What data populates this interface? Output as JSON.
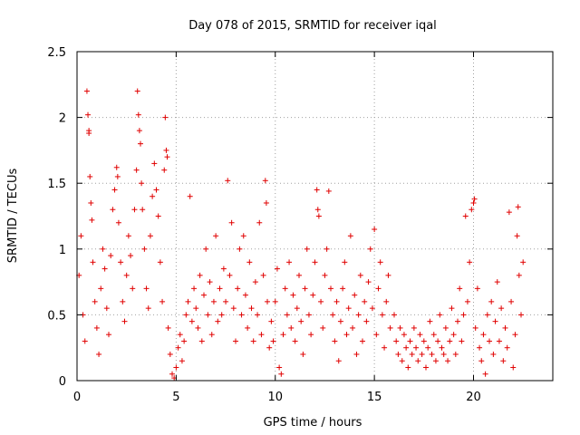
{
  "chart_data": {
    "type": "scatter",
    "title": "Day 078 of 2015, SRMTID for receiver iqal",
    "xlabel": "GPS time / hours",
    "ylabel": "SRMTID / TECUs",
    "xlim": [
      0,
      24
    ],
    "ylim": [
      0,
      2.5
    ],
    "grid": true,
    "marker": "plus",
    "color": "#e00000",
    "xticks": [
      0,
      5,
      10,
      15,
      20
    ],
    "xtick_labels": [
      "0",
      "5",
      "10",
      "15",
      "20"
    ],
    "yticks": [
      0,
      0.5,
      1,
      1.5,
      2,
      2.5
    ],
    "ytick_labels": [
      "0",
      "0.5",
      "1",
      "1.5",
      "2",
      "2.5"
    ],
    "series": [
      {
        "name": "iqal",
        "points": [
          [
            0.1,
            0.8
          ],
          [
            0.2,
            1.1
          ],
          [
            0.3,
            0.5
          ],
          [
            0.4,
            0.3
          ],
          [
            0.5,
            2.2
          ],
          [
            0.55,
            2.02
          ],
          [
            0.6,
            1.88
          ],
          [
            0.6,
            1.9
          ],
          [
            0.65,
            1.55
          ],
          [
            0.7,
            1.35
          ],
          [
            0.75,
            1.22
          ],
          [
            0.8,
            0.9
          ],
          [
            0.9,
            0.6
          ],
          [
            1.0,
            0.4
          ],
          [
            1.1,
            0.2
          ],
          [
            1.2,
            0.7
          ],
          [
            1.3,
            1.0
          ],
          [
            1.4,
            0.85
          ],
          [
            1.5,
            0.55
          ],
          [
            1.6,
            0.35
          ],
          [
            1.7,
            0.95
          ],
          [
            1.8,
            1.3
          ],
          [
            1.9,
            1.45
          ],
          [
            2.0,
            1.62
          ],
          [
            2.05,
            1.55
          ],
          [
            2.1,
            1.2
          ],
          [
            2.2,
            0.9
          ],
          [
            2.3,
            0.6
          ],
          [
            2.4,
            0.45
          ],
          [
            2.5,
            0.8
          ],
          [
            2.6,
            1.1
          ],
          [
            2.7,
            0.95
          ],
          [
            2.8,
            0.7
          ],
          [
            2.9,
            1.3
          ],
          [
            3.0,
            1.6
          ],
          [
            3.05,
            2.2
          ],
          [
            3.1,
            2.02
          ],
          [
            3.15,
            1.9
          ],
          [
            3.2,
            1.8
          ],
          [
            3.25,
            1.5
          ],
          [
            3.3,
            1.3
          ],
          [
            3.4,
            1.0
          ],
          [
            3.5,
            0.7
          ],
          [
            3.6,
            0.55
          ],
          [
            3.7,
            1.1
          ],
          [
            3.8,
            1.4
          ],
          [
            3.9,
            1.65
          ],
          [
            4.0,
            1.45
          ],
          [
            4.1,
            1.25
          ],
          [
            4.2,
            0.9
          ],
          [
            4.3,
            0.6
          ],
          [
            4.4,
            1.6
          ],
          [
            4.45,
            2.0
          ],
          [
            4.5,
            1.75
          ],
          [
            4.55,
            1.7
          ],
          [
            4.6,
            0.4
          ],
          [
            4.7,
            0.2
          ],
          [
            4.8,
            0.05
          ],
          [
            4.9,
            0.02
          ],
          [
            5.0,
            0.1
          ],
          [
            5.1,
            0.25
          ],
          [
            5.2,
            0.35
          ],
          [
            5.3,
            0.15
          ],
          [
            5.4,
            0.3
          ],
          [
            5.5,
            0.5
          ],
          [
            5.6,
            0.6
          ],
          [
            5.7,
            1.4
          ],
          [
            5.8,
            0.45
          ],
          [
            5.9,
            0.7
          ],
          [
            6.0,
            0.55
          ],
          [
            6.1,
            0.4
          ],
          [
            6.2,
            0.8
          ],
          [
            6.3,
            0.3
          ],
          [
            6.4,
            0.65
          ],
          [
            6.5,
            1.0
          ],
          [
            6.6,
            0.5
          ],
          [
            6.7,
            0.75
          ],
          [
            6.8,
            0.35
          ],
          [
            6.9,
            0.6
          ],
          [
            7.0,
            1.1
          ],
          [
            7.1,
            0.45
          ],
          [
            7.2,
            0.7
          ],
          [
            7.3,
            0.5
          ],
          [
            7.4,
            0.85
          ],
          [
            7.5,
            0.6
          ],
          [
            7.6,
            1.52
          ],
          [
            7.7,
            0.8
          ],
          [
            7.8,
            1.2
          ],
          [
            7.9,
            0.55
          ],
          [
            8.0,
            0.3
          ],
          [
            8.1,
            0.7
          ],
          [
            8.2,
            1.0
          ],
          [
            8.3,
            0.5
          ],
          [
            8.4,
            1.1
          ],
          [
            8.5,
            0.65
          ],
          [
            8.6,
            0.4
          ],
          [
            8.7,
            0.9
          ],
          [
            8.8,
            0.55
          ],
          [
            8.9,
            0.3
          ],
          [
            9.0,
            0.75
          ],
          [
            9.1,
            0.5
          ],
          [
            9.2,
            1.2
          ],
          [
            9.3,
            0.35
          ],
          [
            9.4,
            0.8
          ],
          [
            9.5,
            1.52
          ],
          [
            9.55,
            1.35
          ],
          [
            9.6,
            0.6
          ],
          [
            9.7,
            0.25
          ],
          [
            9.8,
            0.45
          ],
          [
            9.9,
            0.3
          ],
          [
            10.0,
            0.6
          ],
          [
            10.1,
            0.85
          ],
          [
            10.2,
            0.1
          ],
          [
            10.3,
            0.05
          ],
          [
            10.4,
            0.35
          ],
          [
            10.5,
            0.7
          ],
          [
            10.6,
            0.5
          ],
          [
            10.7,
            0.9
          ],
          [
            10.8,
            0.4
          ],
          [
            10.9,
            0.65
          ],
          [
            11.0,
            0.3
          ],
          [
            11.1,
            0.55
          ],
          [
            11.2,
            0.8
          ],
          [
            11.3,
            0.45
          ],
          [
            11.4,
            0.2
          ],
          [
            11.5,
            0.7
          ],
          [
            11.6,
            1.0
          ],
          [
            11.7,
            0.5
          ],
          [
            11.8,
            0.35
          ],
          [
            11.9,
            0.65
          ],
          [
            12.0,
            0.9
          ],
          [
            12.1,
            1.45
          ],
          [
            12.15,
            1.3
          ],
          [
            12.2,
            1.25
          ],
          [
            12.3,
            0.6
          ],
          [
            12.4,
            0.4
          ],
          [
            12.5,
            0.8
          ],
          [
            12.6,
            1.0
          ],
          [
            12.7,
            1.44
          ],
          [
            12.8,
            0.7
          ],
          [
            12.9,
            0.5
          ],
          [
            13.0,
            0.3
          ],
          [
            13.1,
            0.6
          ],
          [
            13.2,
            0.15
          ],
          [
            13.3,
            0.45
          ],
          [
            13.4,
            0.7
          ],
          [
            13.5,
            0.9
          ],
          [
            13.6,
            0.35
          ],
          [
            13.7,
            0.55
          ],
          [
            13.8,
            1.1
          ],
          [
            13.9,
            0.4
          ],
          [
            14.0,
            0.65
          ],
          [
            14.1,
            0.2
          ],
          [
            14.2,
            0.5
          ],
          [
            14.3,
            0.8
          ],
          [
            14.4,
            0.3
          ],
          [
            14.5,
            0.6
          ],
          [
            14.6,
            0.45
          ],
          [
            14.7,
            0.75
          ],
          [
            14.8,
            1.0
          ],
          [
            14.9,
            0.55
          ],
          [
            15.0,
            1.15
          ],
          [
            15.1,
            0.35
          ],
          [
            15.2,
            0.7
          ],
          [
            15.3,
            0.9
          ],
          [
            15.4,
            0.5
          ],
          [
            15.5,
            0.25
          ],
          [
            15.6,
            0.6
          ],
          [
            15.7,
            0.8
          ],
          [
            15.8,
            0.4
          ],
          [
            16.0,
            0.5
          ],
          [
            16.1,
            0.3
          ],
          [
            16.2,
            0.2
          ],
          [
            16.3,
            0.4
          ],
          [
            16.4,
            0.15
          ],
          [
            16.5,
            0.35
          ],
          [
            16.6,
            0.25
          ],
          [
            16.7,
            0.1
          ],
          [
            16.8,
            0.3
          ],
          [
            16.9,
            0.2
          ],
          [
            17.0,
            0.4
          ],
          [
            17.1,
            0.25
          ],
          [
            17.2,
            0.15
          ],
          [
            17.3,
            0.35
          ],
          [
            17.4,
            0.2
          ],
          [
            17.5,
            0.3
          ],
          [
            17.6,
            0.1
          ],
          [
            17.7,
            0.25
          ],
          [
            17.8,
            0.45
          ],
          [
            17.9,
            0.2
          ],
          [
            18.0,
            0.35
          ],
          [
            18.1,
            0.15
          ],
          [
            18.2,
            0.3
          ],
          [
            18.3,
            0.5
          ],
          [
            18.4,
            0.25
          ],
          [
            18.5,
            0.2
          ],
          [
            18.6,
            0.4
          ],
          [
            18.7,
            0.15
          ],
          [
            18.8,
            0.3
          ],
          [
            18.9,
            0.55
          ],
          [
            19.0,
            0.35
          ],
          [
            19.1,
            0.2
          ],
          [
            19.2,
            0.45
          ],
          [
            19.3,
            0.7
          ],
          [
            19.4,
            0.3
          ],
          [
            19.5,
            0.5
          ],
          [
            19.6,
            1.25
          ],
          [
            19.7,
            0.6
          ],
          [
            19.8,
            0.9
          ],
          [
            19.9,
            1.3
          ],
          [
            20.0,
            1.35
          ],
          [
            20.05,
            1.38
          ],
          [
            20.1,
            0.4
          ],
          [
            20.2,
            0.7
          ],
          [
            20.3,
            0.25
          ],
          [
            20.4,
            0.15
          ],
          [
            20.5,
            0.35
          ],
          [
            20.6,
            0.05
          ],
          [
            20.7,
            0.5
          ],
          [
            20.8,
            0.3
          ],
          [
            20.9,
            0.6
          ],
          [
            21.0,
            0.2
          ],
          [
            21.1,
            0.45
          ],
          [
            21.2,
            0.75
          ],
          [
            21.3,
            0.3
          ],
          [
            21.4,
            0.55
          ],
          [
            21.5,
            0.15
          ],
          [
            21.6,
            0.4
          ],
          [
            21.7,
            0.25
          ],
          [
            21.8,
            1.28
          ],
          [
            21.9,
            0.6
          ],
          [
            22.0,
            0.1
          ],
          [
            22.1,
            0.35
          ],
          [
            22.2,
            1.1
          ],
          [
            22.25,
            1.32
          ],
          [
            22.3,
            0.8
          ],
          [
            22.4,
            0.5
          ],
          [
            22.5,
            0.9
          ]
        ]
      }
    ]
  }
}
